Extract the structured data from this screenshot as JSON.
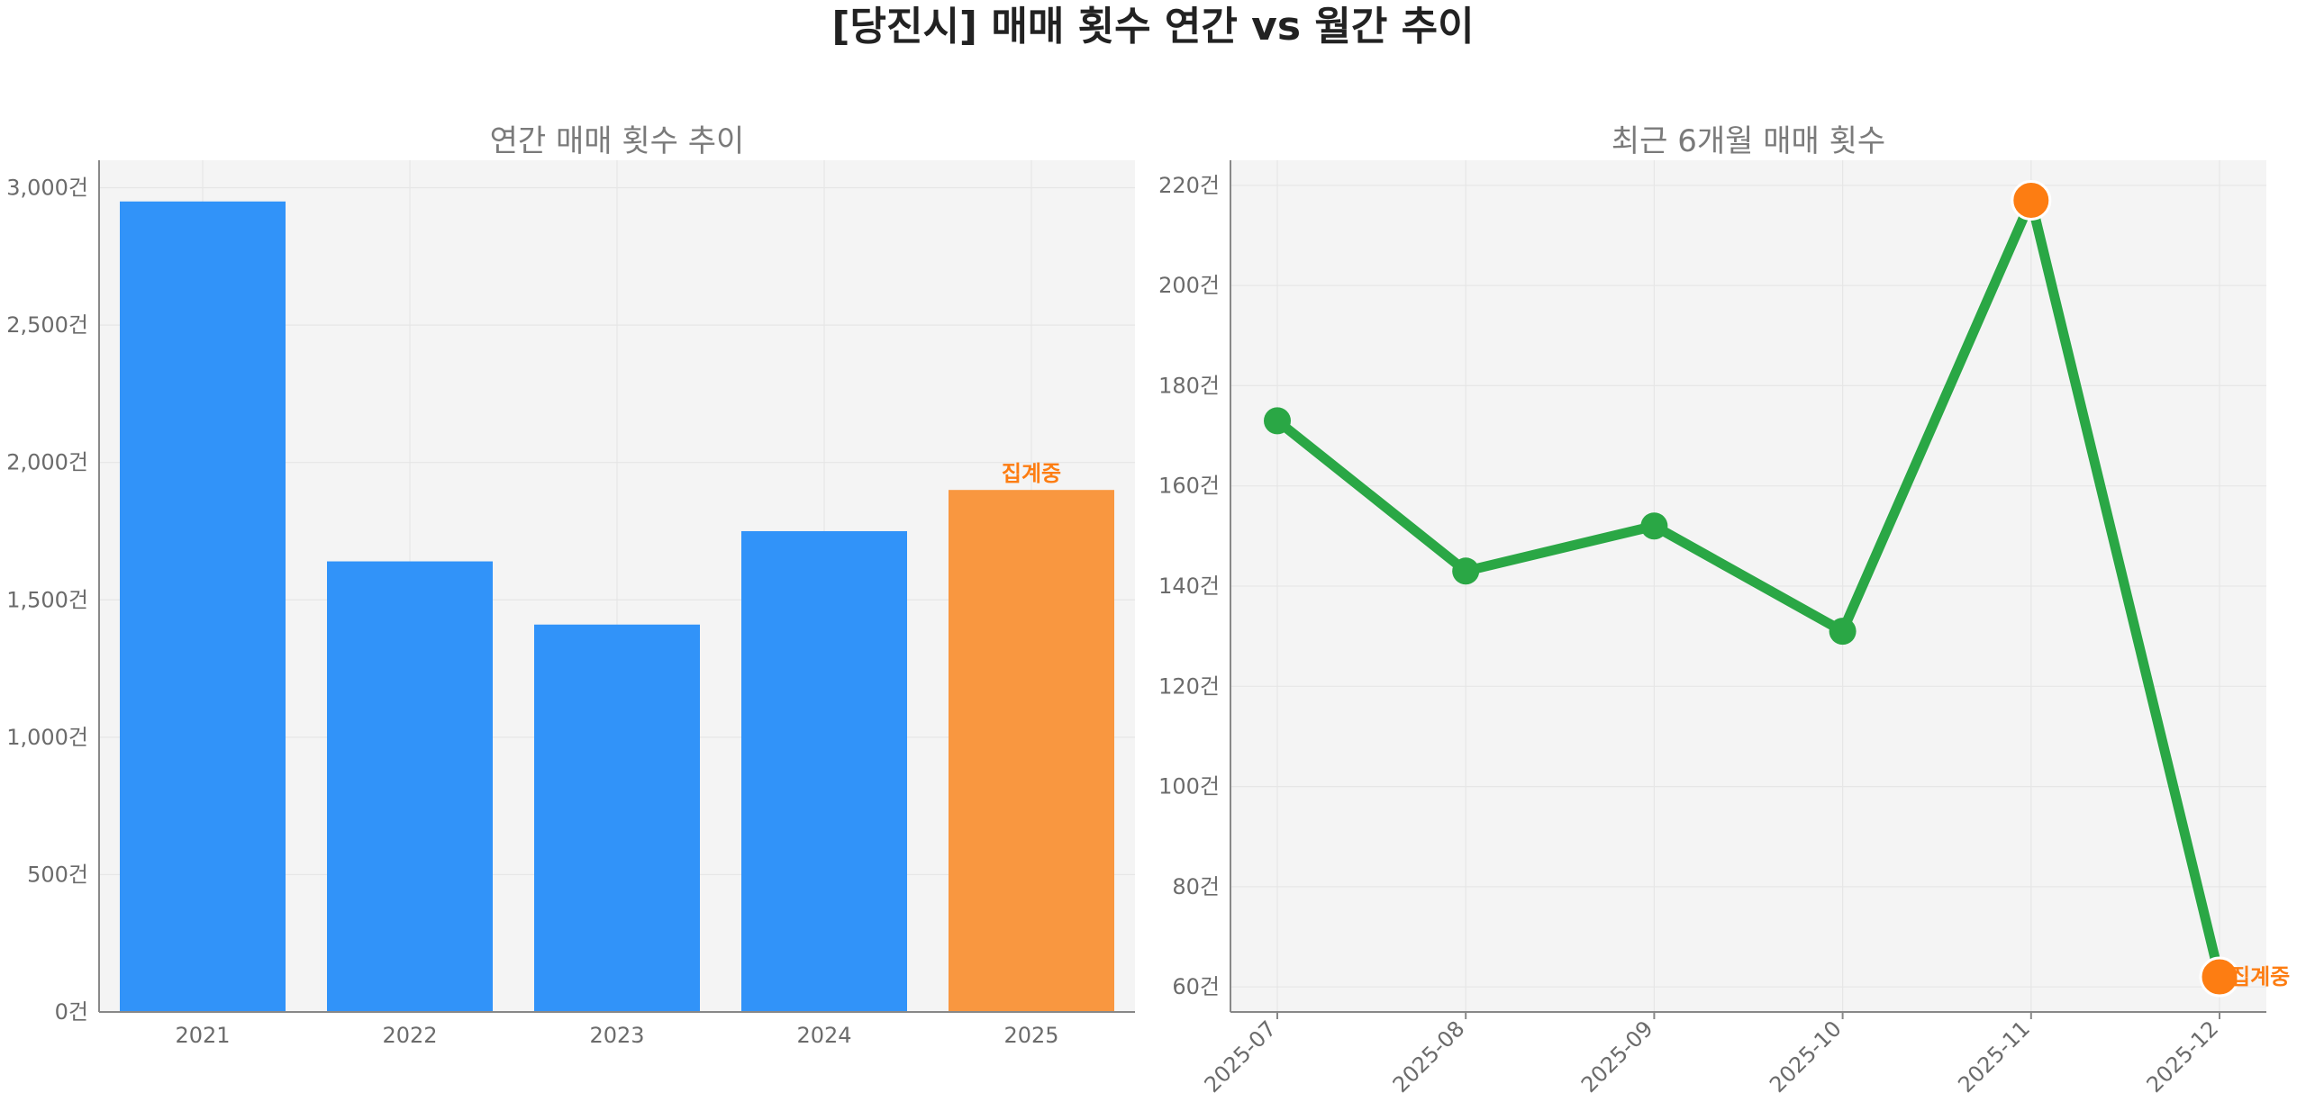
{
  "title": "[당진시] 매매 횟수 연간 vs 월간 추이",
  "colors": {
    "bar": "#3193f9",
    "bar_highlight": "#f99740",
    "line": "#2aa745",
    "marker_highlight": "#fd7d12",
    "annotation": "#fd7d12",
    "axes_bg": "#f4f4f4",
    "grid": "#e6e6e6",
    "spine": "#888888"
  },
  "chart_data": [
    {
      "type": "bar",
      "title": "연간 매매 횟수 추이",
      "categories": [
        "2021",
        "2022",
        "2023",
        "2024",
        "2025"
      ],
      "values": [
        2950,
        1640,
        1410,
        1750,
        1900
      ],
      "ylim": [
        0,
        3100
      ],
      "yticks": [
        0,
        500,
        1000,
        1500,
        2000,
        2500,
        3000
      ],
      "ytick_labels": [
        "0건",
        "500건",
        "1,000건",
        "1,500건",
        "2,000건",
        "2,500건",
        "3,000건"
      ],
      "highlight_index": 4,
      "annotation": {
        "category": "2025",
        "text": "집계중"
      },
      "grid": true
    },
    {
      "type": "line",
      "title": "최근 6개월 매매 횟수",
      "x": [
        "2025-07",
        "2025-08",
        "2025-09",
        "2025-10",
        "2025-11",
        "2025-12"
      ],
      "values": [
        173,
        143,
        152,
        131,
        217,
        62
      ],
      "ylim": [
        55,
        225
      ],
      "yticks": [
        60,
        80,
        100,
        120,
        140,
        160,
        180,
        200,
        220
      ],
      "ytick_labels": [
        "60건",
        "80건",
        "100건",
        "120건",
        "140건",
        "160건",
        "180건",
        "200건",
        "220건"
      ],
      "highlight_indices": [
        4,
        5
      ],
      "annotation": {
        "x": "2025-12",
        "text": "집계중"
      },
      "grid": true
    }
  ]
}
